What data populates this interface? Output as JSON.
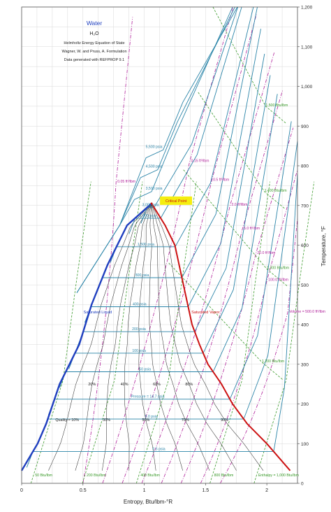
{
  "chart_data": {
    "type": "line",
    "title": "Water",
    "subtitle_lines": [
      "H₂O",
      "Helmholtz Energy Equation of State",
      "Wagner, W. and Pruss, A. Formulation",
      "Data generated with REFPROP 9.1"
    ],
    "xlabel": "Entropy, Btu/lbm-°R",
    "ylabel": "Temperature, °F",
    "xlim": [
      0,
      2.25
    ],
    "ylim": [
      0,
      1200
    ],
    "x_ticks": [
      0,
      0.5,
      1,
      1.5,
      2
    ],
    "x_tick_labels": [
      "0",
      "0.5",
      "1",
      "1.5",
      "2"
    ],
    "y_ticks": [
      0,
      100,
      200,
      300,
      400,
      500,
      600,
      700,
      800,
      900,
      1000,
      1100,
      1200
    ],
    "y_tick_labels": [
      "0",
      "100",
      "200",
      "300",
      "400",
      "500",
      "600",
      "700",
      "800",
      "900",
      "1,000",
      "1,100",
      "1,200"
    ],
    "grid": true,
    "colors": {
      "sat_liquid": "#1f3fbf",
      "sat_vapor": "#cc1111",
      "isobar": "#2a84a8",
      "isochore": "#b0209a",
      "isenthalp": "#3a9a2a",
      "quality": "#333333",
      "critical_label_bg": "#f5ee10"
    },
    "saturation_dome": {
      "liquid": {
        "name": "Saturated Liquid",
        "x": [
          0.0,
          0.13,
          0.2,
          0.31,
          0.39,
          0.47,
          0.57,
          0.7,
          0.86,
          1.06
        ],
        "y": [
          32,
          100,
          150,
          250,
          300,
          350,
          450,
          550,
          650,
          705
        ]
      },
      "vapor": {
        "name": "Saturated Vapor",
        "x": [
          2.19,
          2.0,
          1.84,
          1.72,
          1.63,
          1.52,
          1.45,
          1.39,
          1.32,
          1.25,
          1.17,
          1.06
        ],
        "y": [
          32,
          100,
          150,
          200,
          250,
          300,
          350,
          400,
          500,
          600,
          650,
          705
        ]
      },
      "critical_point": {
        "label": "Critical Point",
        "x": 1.06,
        "y": 705
      }
    },
    "isobars": [
      {
        "label": "0.5 psia",
        "T": 80
      },
      {
        "label": "5.0 psia",
        "T": 162
      },
      {
        "label": "Pressure = 14.7 psia",
        "T": 212
      },
      {
        "label": "50 psia",
        "T": 281
      },
      {
        "label": "100 psia",
        "T": 328
      },
      {
        "label": "200 psia",
        "T": 382
      },
      {
        "label": "400 psia",
        "T": 445
      },
      {
        "label": "800 psia",
        "T": 518
      },
      {
        "label": "1,500 psia",
        "T": 596
      },
      {
        "label": "2,500 psia",
        "T": 668
      },
      {
        "label": "3,000 psia",
        "T": 695
      },
      {
        "label": "3,500 psia",
        "T": 735
      },
      {
        "label": "4,500 psia",
        "T": 790
      },
      {
        "label": "5,500 psia",
        "T": 840
      }
    ],
    "quality_lines": [
      {
        "label": "Quality = 10%",
        "q": 0.1
      },
      {
        "label": "20%",
        "q": 0.2
      },
      {
        "label": "30%",
        "q": 0.3
      },
      {
        "label": "40%",
        "q": 0.4
      },
      {
        "label": "50%",
        "q": 0.5
      },
      {
        "label": "60%",
        "q": 0.6
      },
      {
        "label": "70%",
        "q": 0.7
      },
      {
        "label": "80%",
        "q": 0.8
      },
      {
        "label": "90%",
        "q": 0.9
      }
    ],
    "isochores": [
      {
        "label": "0.05 ft³/lbm",
        "x": 0.77,
        "y": 758
      },
      {
        "label": "0.15 ft³/lbm",
        "x": 1.37,
        "y": 810
      },
      {
        "label": "0.5 ft³/lbm",
        "x": 1.55,
        "y": 762
      },
      {
        "label": "2.0 ft³/lbm",
        "x": 1.7,
        "y": 700
      },
      {
        "label": "5.0 ft³/lbm",
        "x": 1.8,
        "y": 640
      },
      {
        "label": "20.0 ft³/lbm",
        "x": 1.91,
        "y": 578
      },
      {
        "label": "100.0 ft³/lbm",
        "x": 2.0,
        "y": 510
      },
      {
        "label": "Volume = 500.0 ft³/lbm",
        "x": 2.17,
        "y": 430
      }
    ],
    "isenthalps": [
      {
        "label": "50 Btu/lbm",
        "x": 0.11,
        "y": 18
      },
      {
        "label": "200 Btu/lbm",
        "x": 0.53,
        "y": 18
      },
      {
        "label": "400 Btu/lbm",
        "x": 0.97,
        "y": 18
      },
      {
        "label": "800 Btu/lbm",
        "x": 1.57,
        "y": 18
      },
      {
        "label": "Enthalpy = 1,000 Btu/lbm",
        "x": 1.93,
        "y": 18
      },
      {
        "label": "1,200 Btu/lbm",
        "x": 1.96,
        "y": 305
      },
      {
        "label": "1,300 Btu/lbm",
        "x": 2.0,
        "y": 540
      },
      {
        "label": "1,400 Btu/lbm",
        "x": 1.98,
        "y": 735
      },
      {
        "label": "1,500 Btu/lbm",
        "x": 1.99,
        "y": 950
      }
    ]
  }
}
